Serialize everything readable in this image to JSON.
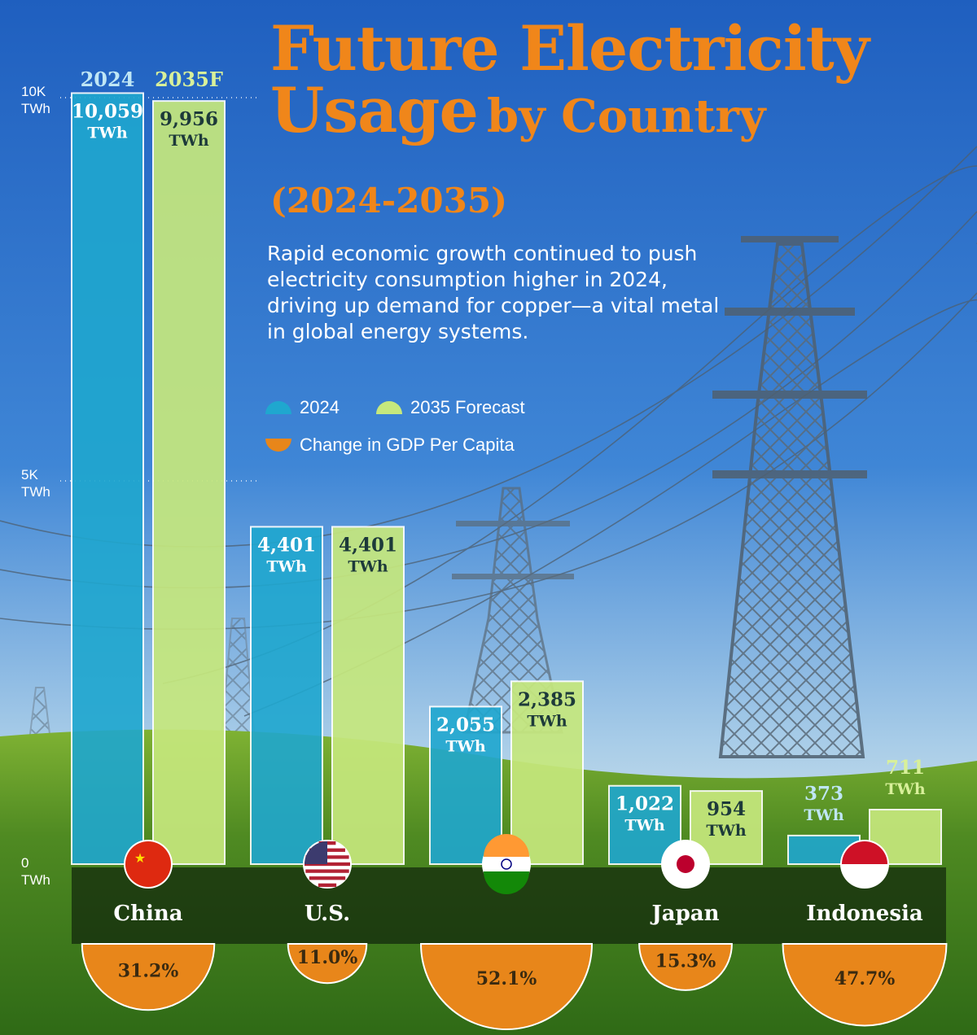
{
  "title": {
    "line1": "Future Electricity",
    "line2a": "Usage",
    "line2b": "by Country",
    "years": "(2024-2035)"
  },
  "description": "Rapid economic growth continued to push electricity consumption higher in 2024, driving up demand for copper—a vital metal in global energy systems.",
  "legend": {
    "item_2024": "2024",
    "item_2035": "2035 Forecast",
    "item_gdp": "Change in GDP Per Capita"
  },
  "colors": {
    "bar_2024": "#1fa7cf",
    "bar_2035": "#c6e87d",
    "gdp": "#e8861a",
    "title": "#f0861a"
  },
  "chart_data": {
    "type": "bar",
    "title": "Future Electricity Usage by Country (2024-2035)",
    "categories": [
      "China",
      "U.S.",
      "",
      "Japan",
      "Indonesia"
    ],
    "series": [
      {
        "name": "2024",
        "header": "2024",
        "values": [
          10059,
          4401,
          2055,
          1022,
          373
        ]
      },
      {
        "name": "2035 Forecast",
        "header": "2035F",
        "values": [
          9956,
          4401,
          2385,
          954,
          711
        ]
      }
    ],
    "value_labels_2024": [
      "10,059",
      "4,401",
      "2,055",
      "1,022",
      "373"
    ],
    "value_labels_2035": [
      "9,956",
      "4,401",
      "2,385",
      "954",
      "711"
    ],
    "unit": "TWh",
    "gdp_change": {
      "name": "Change in GDP Per Capita",
      "values": [
        31.2,
        11.0,
        52.1,
        15.3,
        47.7
      ],
      "labels": [
        "31.2%",
        "11.0%",
        "52.1%",
        "15.3%",
        "47.7%"
      ]
    },
    "flags": [
      "china",
      "us",
      "india",
      "japan",
      "indonesia"
    ],
    "y_ticks": [
      {
        "value": 10000,
        "line1": "10K",
        "line2": "TWh"
      },
      {
        "value": 5000,
        "line1": "5K",
        "line2": "TWh"
      },
      {
        "value": 0,
        "line1": "0",
        "line2": "TWh"
      }
    ],
    "ylim": [
      0,
      10000
    ]
  }
}
